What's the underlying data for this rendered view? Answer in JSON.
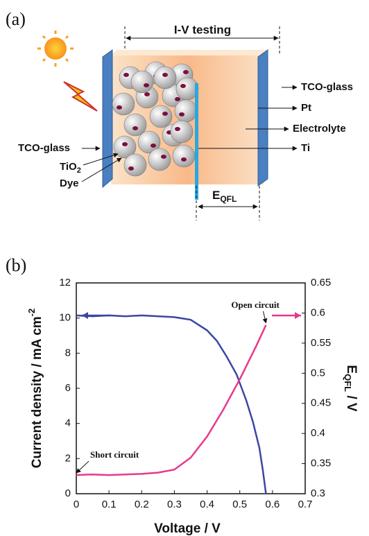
{
  "diagram": {
    "label": "(a)",
    "title": "I-V testing",
    "right_labels": [
      "TCO-glass",
      "Pt",
      "Electrolyte",
      "Ti"
    ],
    "left_label": "TCO-glass",
    "tio2": {
      "main": "TiO",
      "sub": "2"
    },
    "dye": "Dye",
    "eqfl": {
      "main": "E",
      "sub": "QFL"
    }
  },
  "chart_data": {
    "type": "line",
    "panel_label": "(b)",
    "xlabel": "Voltage / V",
    "ylabel": {
      "text": "Current density / mA cm",
      "sup": "-2"
    },
    "y2label": {
      "main": "E",
      "sub": "QFL",
      "rest": " / V"
    },
    "xlim": [
      0,
      0.7
    ],
    "xticks": [
      0,
      0.1,
      0.2,
      0.3,
      0.4,
      0.5,
      0.6,
      0.7
    ],
    "ylim": [
      0,
      12
    ],
    "yticks": [
      0,
      2,
      4,
      6,
      8,
      10,
      12
    ],
    "y2lim": [
      0.3,
      0.65
    ],
    "y2ticks": [
      0.3,
      0.35,
      0.4,
      0.45,
      0.5,
      0.55,
      0.6,
      0.65
    ],
    "series": [
      {
        "color": "#3b46a0",
        "x": [
          0,
          0.05,
          0.1,
          0.15,
          0.2,
          0.25,
          0.3,
          0.35,
          0.4,
          0.43,
          0.46,
          0.49,
          0.52,
          0.54,
          0.56,
          0.57,
          0.58
        ],
        "values": [
          10.15,
          10.1,
          10.15,
          10.1,
          10.15,
          10.1,
          10.05,
          9.9,
          9.3,
          8.7,
          7.8,
          6.8,
          5.3,
          4.1,
          2.6,
          1.4,
          0
        ]
      },
      {
        "color": "#e8388a",
        "axis": "y2",
        "x": [
          0,
          0.05,
          0.1,
          0.15,
          0.2,
          0.25,
          0.3,
          0.35,
          0.4,
          0.45,
          0.5,
          0.55,
          0.58
        ],
        "values": [
          0.331,
          0.332,
          0.331,
          0.332,
          0.333,
          0.335,
          0.34,
          0.36,
          0.395,
          0.44,
          0.49,
          0.545,
          0.58
        ]
      }
    ],
    "annotations": [
      {
        "text": "Open circuit",
        "x": 0.58,
        "y": 0.58,
        "axis": "y2"
      },
      {
        "text": "Short circuit",
        "x": 0,
        "y": 0.331,
        "axis": "y2"
      }
    ]
  }
}
